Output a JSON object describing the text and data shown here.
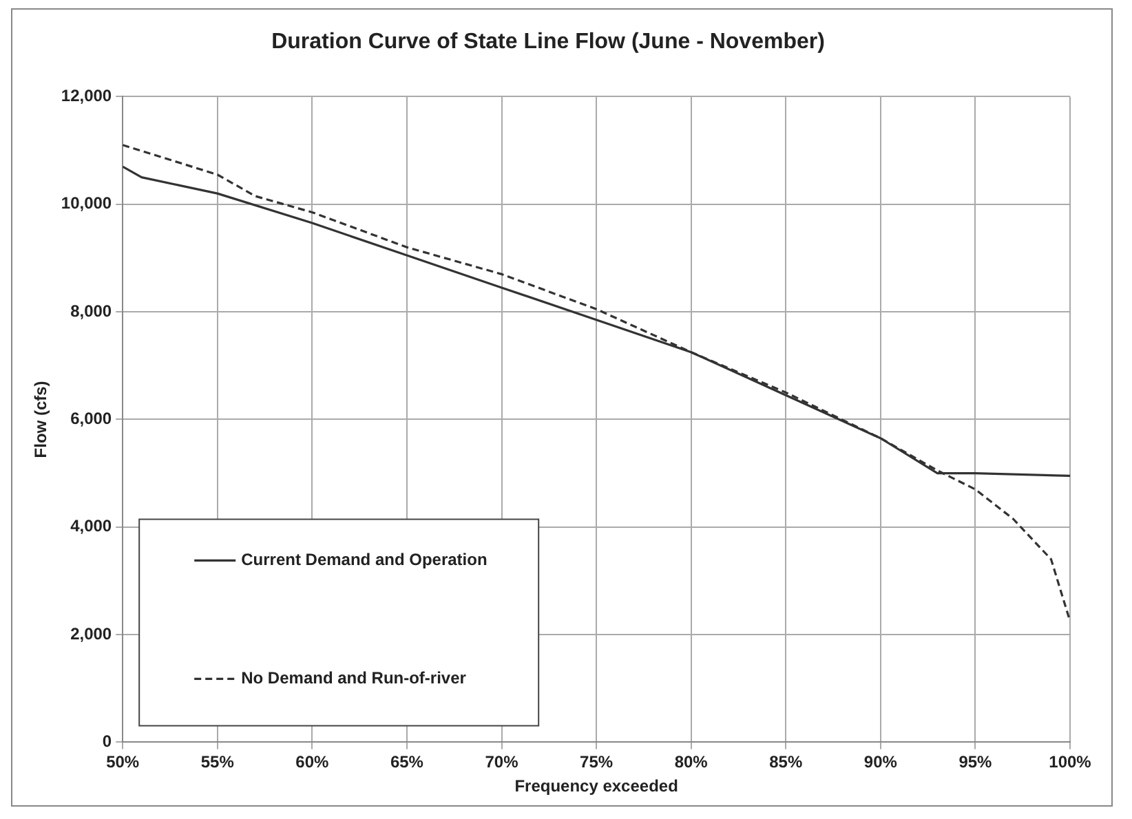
{
  "chart_data": {
    "type": "line",
    "title": "Duration Curve of State Line Flow (June - November)",
    "xlabel": "Frequency exceeded",
    "ylabel": "Flow (cfs)",
    "xlim": [
      50,
      100
    ],
    "xticks": [
      {
        "value": 50,
        "label": "50%"
      },
      {
        "value": 55,
        "label": "55%"
      },
      {
        "value": 60,
        "label": "60%"
      },
      {
        "value": 65,
        "label": "65%"
      },
      {
        "value": 70,
        "label": "70%"
      },
      {
        "value": 75,
        "label": "75%"
      },
      {
        "value": 80,
        "label": "80%"
      },
      {
        "value": 85,
        "label": "85%"
      },
      {
        "value": 90,
        "label": "90%"
      },
      {
        "value": 95,
        "label": "95%"
      },
      {
        "value": 100,
        "label": "100%"
      }
    ],
    "ylim": [
      0,
      12000
    ],
    "yticks": [
      {
        "value": 0,
        "label": "0"
      },
      {
        "value": 2000,
        "label": "2,000"
      },
      {
        "value": 4000,
        "label": "4,000"
      },
      {
        "value": 6000,
        "label": "6,000"
      },
      {
        "value": 8000,
        "label": "8,000"
      },
      {
        "value": 10000,
        "label": "10,000"
      },
      {
        "value": 12000,
        "label": "12,000"
      }
    ],
    "grid": true,
    "legend": "bottom left",
    "marker": "none",
    "series": [
      {
        "name": "Current Demand and Operation",
        "color": "#333333",
        "line_style": "solid",
        "x": [
          50,
          51,
          53,
          55,
          60,
          65,
          70,
          75,
          80,
          85,
          90,
          93,
          95,
          100
        ],
        "values": [
          10700,
          10500,
          10350,
          10200,
          9650,
          9050,
          8450,
          7850,
          7250,
          6450,
          5650,
          5000,
          5000,
          4950
        ]
      },
      {
        "name": "No Demand and Run-of-river",
        "color": "#333333",
        "line_style": "dashed",
        "x": [
          50,
          55,
          57,
          60,
          65,
          70,
          75,
          80,
          85,
          90,
          93,
          95,
          97,
          99,
          100
        ],
        "values": [
          11100,
          10550,
          10150,
          9850,
          9200,
          8700,
          8050,
          7250,
          6500,
          5650,
          5050,
          4700,
          4150,
          3400,
          2250
        ]
      }
    ]
  }
}
